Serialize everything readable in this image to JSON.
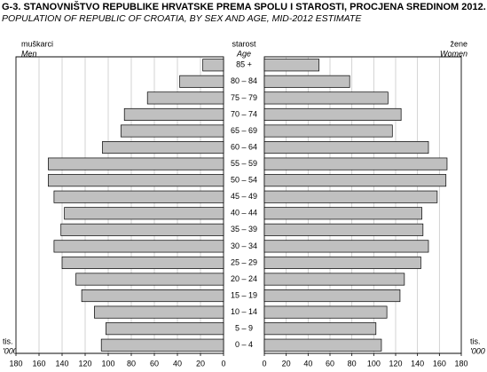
{
  "chart_data": {
    "type": "pyramid",
    "title": "G-3. STANOVNIŠTVO REPUBLIKE HRVATSKE PREMA SPOLU I STAROSTI, PROCJENA SREDINOM 2012.",
    "subtitle": "POPULATION OF REPUBLIC OF CROATIA, BY SEX AND AGE, MID-2012 ESTIMATE",
    "category_label": "starost",
    "category_label_en": "Age",
    "unit_label": "tis.",
    "unit_label_en": "'000",
    "categories": [
      "85 +",
      "80 – 84",
      "75 – 79",
      "70 – 74",
      "65 – 69",
      "60 – 64",
      "55 – 59",
      "50 – 54",
      "45 – 49",
      "40 – 44",
      "35 – 39",
      "30 – 34",
      "25 – 29",
      "20 – 24",
      "15 – 19",
      "10 – 14",
      "5 – 9",
      "0 – 4"
    ],
    "series": [
      {
        "name": "muškarci",
        "name_en": "Men",
        "color": "#c0c0c0",
        "values": [
          18,
          38,
          66,
          86,
          89,
          105,
          152,
          152,
          147,
          138,
          141,
          147,
          140,
          128,
          123,
          112,
          102,
          106
        ]
      },
      {
        "name": "žene",
        "name_en": "Women",
        "color": "#c0c0c0",
        "values": [
          50,
          78,
          113,
          125,
          117,
          150,
          167,
          166,
          158,
          144,
          145,
          150,
          143,
          128,
          124,
          112,
          102,
          107
        ]
      }
    ],
    "xlim": [
      0,
      180
    ],
    "xticks": [
      0,
      20,
      40,
      60,
      80,
      100,
      120,
      140,
      160,
      180
    ],
    "grid": true
  }
}
